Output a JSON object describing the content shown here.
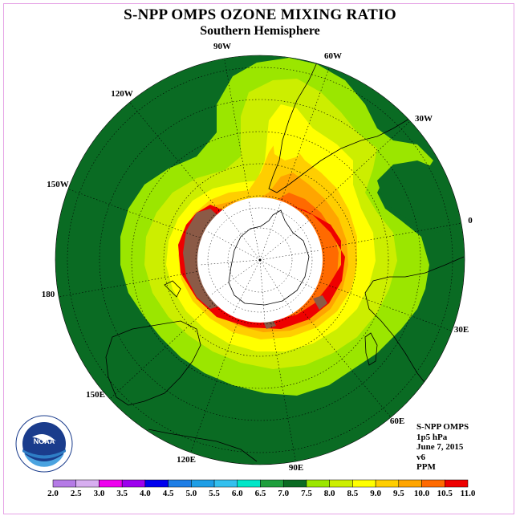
{
  "title": "S-NPP OMPS OZONE MIXING RATIO",
  "subtitle": "Southern Hemisphere",
  "longitude_labels": [
    "90W",
    "60W",
    "30W",
    "0",
    "30E",
    "60E",
    "90E",
    "120E",
    "150E",
    "180",
    "150W",
    "120W"
  ],
  "info": {
    "instrument": "S-NPP OMPS",
    "level": "1p5 hPa",
    "date": "June 7, 2015",
    "version": "v6",
    "units": "PPM"
  },
  "colorbar": {
    "ticks": [
      "2.0",
      "2.5",
      "3.0",
      "3.5",
      "4.0",
      "4.5",
      "5.0",
      "5.5",
      "6.0",
      "6.5",
      "7.0",
      "7.5",
      "8.0",
      "8.5",
      "9.0",
      "9.5",
      "10.0",
      "10.5",
      "11.0"
    ],
    "colors": [
      "#b57be6",
      "#d7aef0",
      "#ee00ee",
      "#9d00ee",
      "#0000ee",
      "#1e7ee6",
      "#1e9ee6",
      "#34c0ee",
      "#00e6c8",
      "#1e9e3c",
      "#0a6b23",
      "#9be600",
      "#ccee00",
      "#ffff00",
      "#ffce00",
      "#ffa500",
      "#ff6a00",
      "#ee0000",
      "#8b5a46"
    ]
  },
  "logo_text": "NOAA"
}
